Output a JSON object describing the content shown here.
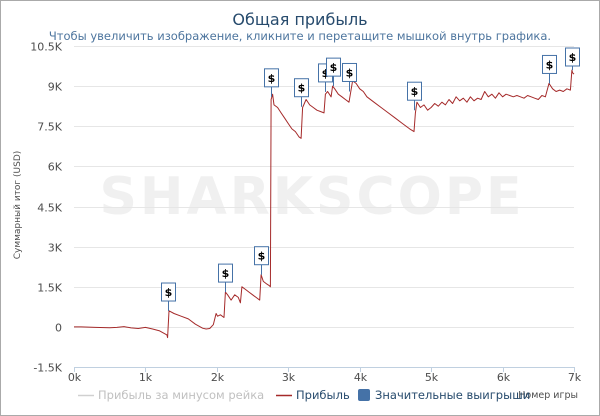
{
  "chart": {
    "title": "Общая прибыль",
    "subtitle": "Чтобы увеличить изображение, кликните и перетащите мышкой внутрь графика.",
    "watermark": "SHARKSCOPE",
    "colors": {
      "profit": "#a52a2a",
      "minus_rake": "#d0d0d0",
      "flag": "#4572a7",
      "grid": "#e6e6e6",
      "axis": "#c0d0e0",
      "frame": "#aaaaaa"
    },
    "legend": [
      {
        "label": "Прибыль за минусом рейка",
        "kind": "line",
        "color": "#d0d0d0",
        "muted": true
      },
      {
        "label": "Прибыль",
        "kind": "line",
        "color": "#a52a2a",
        "muted": false
      },
      {
        "label": "Значительные выигрыши",
        "kind": "box",
        "color": "#4572a7",
        "muted": false
      }
    ]
  },
  "chart_data": {
    "type": "line",
    "title": "Общая прибыль",
    "subtitle": "Чтобы увеличить изображение, кликните и перетащите мышкой внутрь графика.",
    "xlabel": "Номер игры",
    "ylabel": "Суммарный итог (USD)",
    "xlim": [
      0,
      7000
    ],
    "ylim": [
      -1500,
      10500
    ],
    "x_ticks": [
      0,
      1000,
      2000,
      3000,
      4000,
      5000,
      6000,
      7000
    ],
    "x_tick_labels": [
      "0k",
      "1k",
      "2k",
      "3k",
      "4k",
      "5k",
      "6k",
      "7k"
    ],
    "y_ticks": [
      -1500,
      0,
      1500,
      3000,
      4500,
      6000,
      7500,
      9000,
      10500
    ],
    "y_tick_labels": [
      "-1.5K",
      "0",
      "1.5K",
      "3K",
      "4.5K",
      "6K",
      "7.5K",
      "9K",
      "10.5K"
    ],
    "grid": "horizontal",
    "legend_position": "bottom",
    "series": [
      {
        "name": "Прибыль",
        "x": [
          0,
          100,
          300,
          500,
          600,
          700,
          800,
          900,
          1000,
          1100,
          1200,
          1300,
          1310,
          1330,
          1400,
          1500,
          1600,
          1700,
          1800,
          1850,
          1900,
          1950,
          1990,
          2010,
          2050,
          2100,
          2120,
          2150,
          2200,
          2250,
          2300,
          2330,
          2350,
          2400,
          2450,
          2500,
          2550,
          2600,
          2620,
          2650,
          2700,
          2730,
          2750,
          2760,
          2780,
          2800,
          2850,
          2900,
          2950,
          3000,
          3050,
          3100,
          3150,
          3180,
          3200,
          3250,
          3300,
          3350,
          3400,
          3450,
          3500,
          3520,
          3550,
          3600,
          3620,
          3650,
          3700,
          3750,
          3800,
          3850,
          3900,
          3950,
          4000,
          4050,
          4100,
          4200,
          4300,
          4400,
          4500,
          4600,
          4700,
          4760,
          4780,
          4800,
          4850,
          4900,
          4950,
          5000,
          5050,
          5100,
          5150,
          5200,
          5250,
          5300,
          5350,
          5400,
          5450,
          5500,
          5550,
          5600,
          5650,
          5700,
          5750,
          5800,
          5850,
          5900,
          5950,
          6000,
          6050,
          6100,
          6150,
          6200,
          6250,
          6300,
          6350,
          6400,
          6450,
          6500,
          6550,
          6600,
          6650,
          6700,
          6750,
          6800,
          6850,
          6900,
          6950,
          6970,
          6980,
          7000
        ],
        "y": [
          0,
          0,
          -20,
          -30,
          -20,
          10,
          -40,
          -60,
          -20,
          -80,
          -150,
          -300,
          -400,
          600,
          500,
          400,
          300,
          100,
          -50,
          -80,
          -60,
          80,
          500,
          400,
          450,
          350,
          1300,
          1200,
          1000,
          1200,
          1100,
          900,
          1500,
          1400,
          1300,
          1200,
          1100,
          1000,
          1950,
          1700,
          1600,
          1550,
          1500,
          8500,
          8700,
          8300,
          8200,
          8000,
          7800,
          7600,
          7400,
          7300,
          7100,
          7050,
          8200,
          8500,
          8300,
          8200,
          8100,
          8050,
          8000,
          8700,
          8800,
          8600,
          9000,
          8900,
          8700,
          8600,
          8500,
          8400,
          9200,
          9100,
          8900,
          8800,
          8600,
          8400,
          8200,
          8000,
          7800,
          7600,
          7400,
          7300,
          8000,
          8400,
          8200,
          8300,
          8100,
          8200,
          8350,
          8250,
          8400,
          8300,
          8500,
          8350,
          8600,
          8450,
          8550,
          8400,
          8600,
          8450,
          8550,
          8500,
          8800,
          8600,
          8700,
          8550,
          8750,
          8600,
          8700,
          8650,
          8600,
          8650,
          8600,
          8550,
          8650,
          8600,
          8550,
          8500,
          8650,
          8600,
          9100,
          8900,
          8800,
          8850,
          8800,
          8900,
          8850,
          9600,
          9500,
          9450
        ]
      },
      {
        "name": "Прибыль за минусом рейка",
        "x": [],
        "y": []
      },
      {
        "name": "Значительные выигрыши",
        "type": "flags",
        "label": "$",
        "x": [
          1310,
          2120,
          2620,
          2760,
          3180,
          3520,
          3620,
          3850,
          4760,
          6650,
          6970
        ]
      }
    ]
  }
}
